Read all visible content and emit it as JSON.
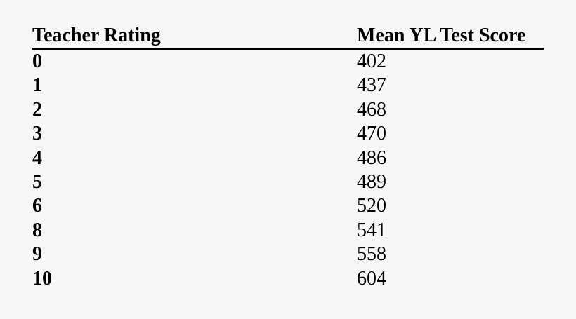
{
  "table": {
    "headers": {
      "rating": "Teacher Rating",
      "score": "Mean YL Test Score"
    },
    "rows": [
      {
        "rating": "0",
        "score": "402"
      },
      {
        "rating": "1",
        "score": "437"
      },
      {
        "rating": "2",
        "score": "468"
      },
      {
        "rating": "3",
        "score": "470"
      },
      {
        "rating": "4",
        "score": "486"
      },
      {
        "rating": "5",
        "score": "489"
      },
      {
        "rating": "6",
        "score": "520"
      },
      {
        "rating": "8",
        "score": "541"
      },
      {
        "rating": "9",
        "score": "558"
      },
      {
        "rating": "10",
        "score": "604"
      }
    ]
  }
}
